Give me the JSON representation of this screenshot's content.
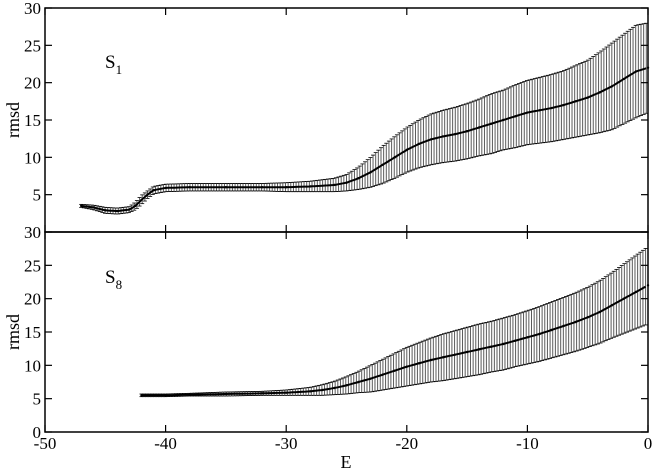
{
  "chart_data": [
    {
      "type": "line",
      "panel_label": "S",
      "panel_subscript": "1",
      "xlabel": "E",
      "ylabel": "rmsd",
      "xlim": [
        -50,
        0
      ],
      "ylim": [
        0,
        30
      ],
      "x_ticks": [
        -50,
        -40,
        -30,
        -20,
        -10,
        0
      ],
      "x_tick_labels": [
        "-50",
        "-40",
        "-30",
        "-20",
        "-10",
        "0"
      ],
      "y_ticks": [
        5,
        10,
        15,
        20,
        25,
        30
      ],
      "y_tick_labels": [
        "5",
        "10",
        "15",
        "20",
        "25",
        "30"
      ],
      "grid": false,
      "error_bars": true,
      "series": [
        {
          "x": [
            -47,
            -46,
            -45,
            -44,
            -43,
            -42.5,
            -42,
            -41.5,
            -41,
            -40,
            -38,
            -35,
            -32,
            -30,
            -28,
            -26,
            -25,
            -24,
            -23,
            -22,
            -21,
            -20,
            -19,
            -18,
            -17,
            -16,
            -15,
            -14,
            -13,
            -12,
            -11,
            -10,
            -9,
            -8,
            -7,
            -6,
            -5,
            -4,
            -3,
            -2,
            -1,
            0
          ],
          "y": [
            3.5,
            3.3,
            2.9,
            2.8,
            3.0,
            3.5,
            4.3,
            5.0,
            5.6,
            5.9,
            6.0,
            6.0,
            6.0,
            6.0,
            6.1,
            6.3,
            6.6,
            7.2,
            8.0,
            9.0,
            10.0,
            11.0,
            11.8,
            12.4,
            12.8,
            13.1,
            13.5,
            14.0,
            14.5,
            15.0,
            15.5,
            16.0,
            16.3,
            16.6,
            17.0,
            17.5,
            18.0,
            18.7,
            19.5,
            20.5,
            21.5,
            22.0
          ],
          "err": [
            0.2,
            0.3,
            0.4,
            0.4,
            0.4,
            0.5,
            0.6,
            0.5,
            0.5,
            0.5,
            0.5,
            0.5,
            0.5,
            0.6,
            0.7,
            0.9,
            1.1,
            1.5,
            2.0,
            2.5,
            2.8,
            3.0,
            3.2,
            3.4,
            3.5,
            3.6,
            3.7,
            3.8,
            4.0,
            4.0,
            4.2,
            4.3,
            4.4,
            4.5,
            4.6,
            4.8,
            5.0,
            5.4,
            5.8,
            6.0,
            6.2,
            6.0
          ]
        }
      ]
    },
    {
      "type": "line",
      "panel_label": "S",
      "panel_subscript": "8",
      "xlabel": "E",
      "ylabel": "rmsd",
      "xlim": [
        -50,
        0
      ],
      "ylim": [
        0,
        30
      ],
      "x_ticks": [
        -50,
        -40,
        -30,
        -20,
        -10,
        0
      ],
      "x_tick_labels": [
        "-50",
        "-40",
        "-30",
        "-20",
        "-10",
        "0"
      ],
      "y_ticks": [
        0,
        5,
        10,
        15,
        20,
        25,
        30
      ],
      "y_tick_labels": [
        "0",
        "5",
        "10",
        "15",
        "20",
        "25",
        "30"
      ],
      "grid": false,
      "error_bars": true,
      "series": [
        {
          "x": [
            -42,
            -40,
            -38,
            -35,
            -32,
            -30,
            -28,
            -27,
            -26,
            -25,
            -24,
            -23,
            -22,
            -21,
            -20,
            -19,
            -18,
            -17,
            -16,
            -15,
            -14,
            -13,
            -12,
            -11,
            -10,
            -9,
            -8,
            -7,
            -6,
            -5,
            -4,
            -3,
            -2,
            -1,
            0
          ],
          "y": [
            5.5,
            5.5,
            5.6,
            5.7,
            5.8,
            5.9,
            6.1,
            6.3,
            6.6,
            7.0,
            7.5,
            8.0,
            8.6,
            9.2,
            9.8,
            10.3,
            10.8,
            11.2,
            11.6,
            12.0,
            12.4,
            12.8,
            13.2,
            13.7,
            14.2,
            14.7,
            15.3,
            15.9,
            16.5,
            17.2,
            18.0,
            19.0,
            20.0,
            21.0,
            22.0
          ],
          "err": [
            0.2,
            0.2,
            0.2,
            0.3,
            0.3,
            0.4,
            0.6,
            0.8,
            1.0,
            1.3,
            1.6,
            2.0,
            2.3,
            2.6,
            2.9,
            3.1,
            3.3,
            3.5,
            3.6,
            3.7,
            3.8,
            3.8,
            3.9,
            3.9,
            4.0,
            4.1,
            4.2,
            4.3,
            4.4,
            4.5,
            4.7,
            4.9,
            5.2,
            5.5,
            5.8
          ]
        }
      ]
    }
  ]
}
